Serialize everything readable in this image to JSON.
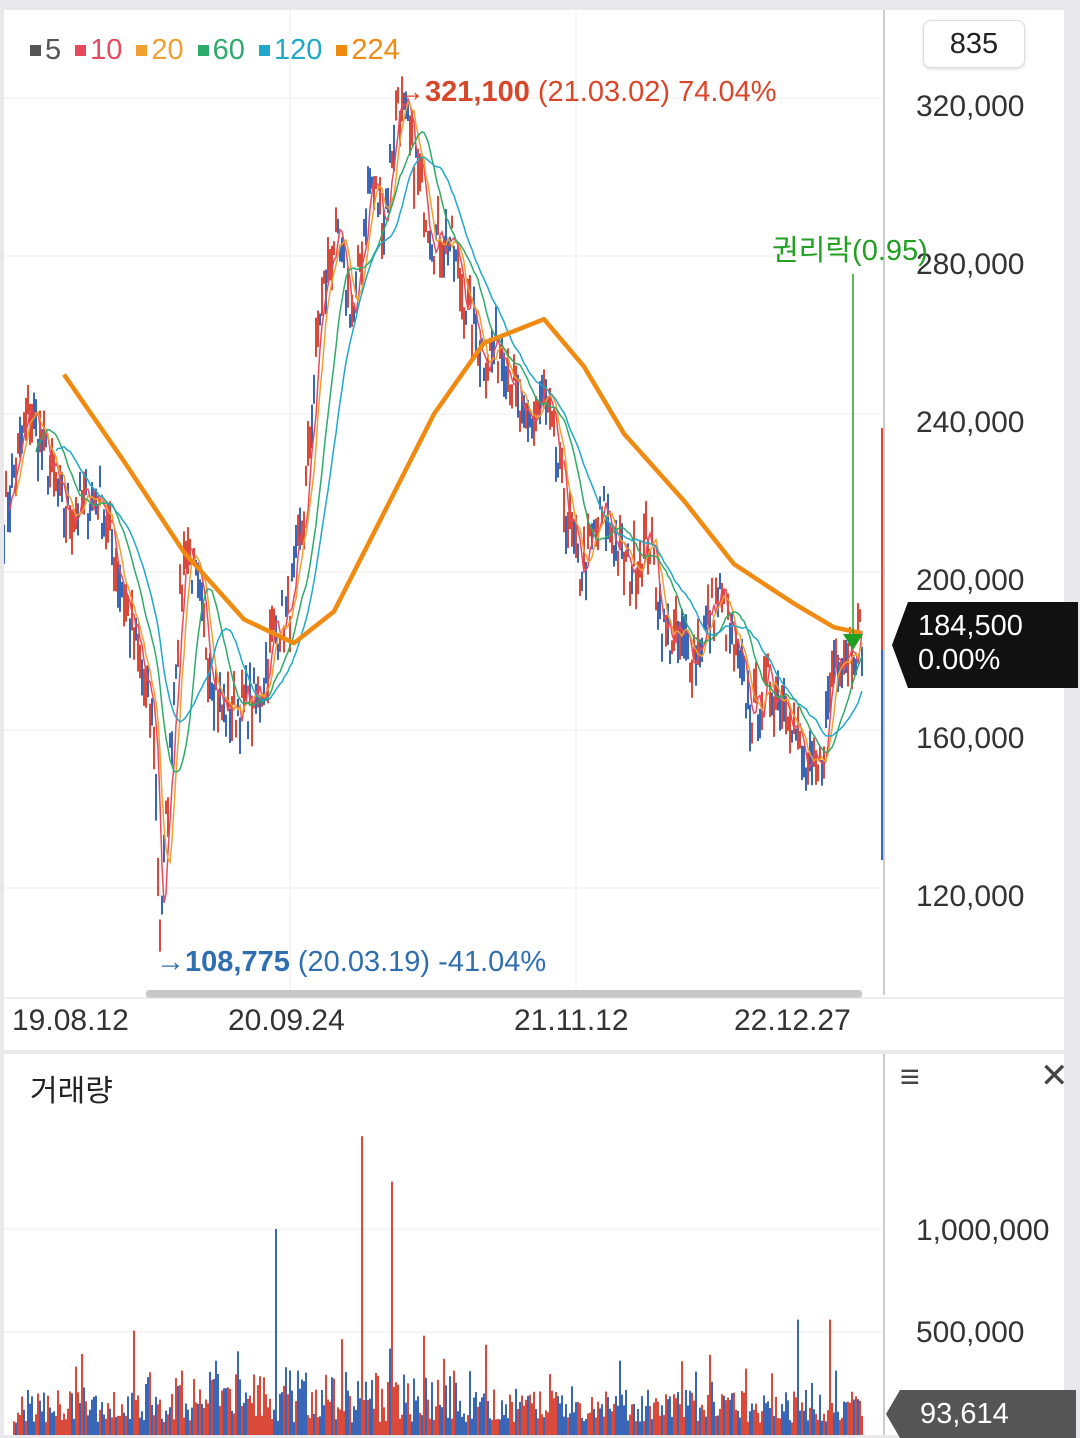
{
  "legend": [
    {
      "label": "5",
      "color": "#555555"
    },
    {
      "label": "10",
      "color": "#e8495f"
    },
    {
      "label": "20",
      "color": "#f0a030"
    },
    {
      "label": "60",
      "color": "#2eaa6a"
    },
    {
      "label": "120",
      "color": "#20a8c8"
    },
    {
      "label": "224",
      "color": "#f08a10"
    }
  ],
  "count_box": "835",
  "price_axis": [
    "320,000",
    "280,000",
    "240,000",
    "200,000",
    "160,000",
    "120,000"
  ],
  "date_axis": [
    "19.08.12",
    "20.09.24",
    "21.11.12",
    "22.12.27"
  ],
  "high_annotation": {
    "arrow": "→",
    "price": "321,100",
    "date": "(21.03.02)",
    "change": "74.04%",
    "color": "#d9472b"
  },
  "low_annotation": {
    "arrow": "→",
    "price": "108,775",
    "date": "(20.03.19)",
    "change": "-41.04%",
    "color": "#2f6fb0"
  },
  "event_annotation": {
    "label": "권리락(0.95)",
    "color": "#22a022"
  },
  "current_price": {
    "price": "184,500",
    "change": "0.00%"
  },
  "volume": {
    "title": "거래량",
    "axis": [
      "1,000,000",
      "500,000"
    ],
    "current": "93,614",
    "menu_icon": "hamburger-menu-icon",
    "close_icon": "close-icon"
  },
  "chart_data": {
    "type": "line",
    "title": "",
    "x": [
      "19.08.12",
      "20.03.19",
      "20.09.24",
      "21.03.02",
      "21.11.12",
      "22.12.27"
    ],
    "series": [
      {
        "name": "5",
        "values": [
          215000,
          108775,
          190000,
          321100,
          225000,
          160000
        ]
      },
      {
        "name": "224",
        "values": [
          250000,
          200000,
          182000,
          258000,
          240000,
          186000
        ]
      }
    ],
    "ylim": [
      100000,
      330000
    ],
    "volume_ylim": [
      0,
      1500000
    ],
    "grid": true,
    "legend_position": "top-left"
  }
}
